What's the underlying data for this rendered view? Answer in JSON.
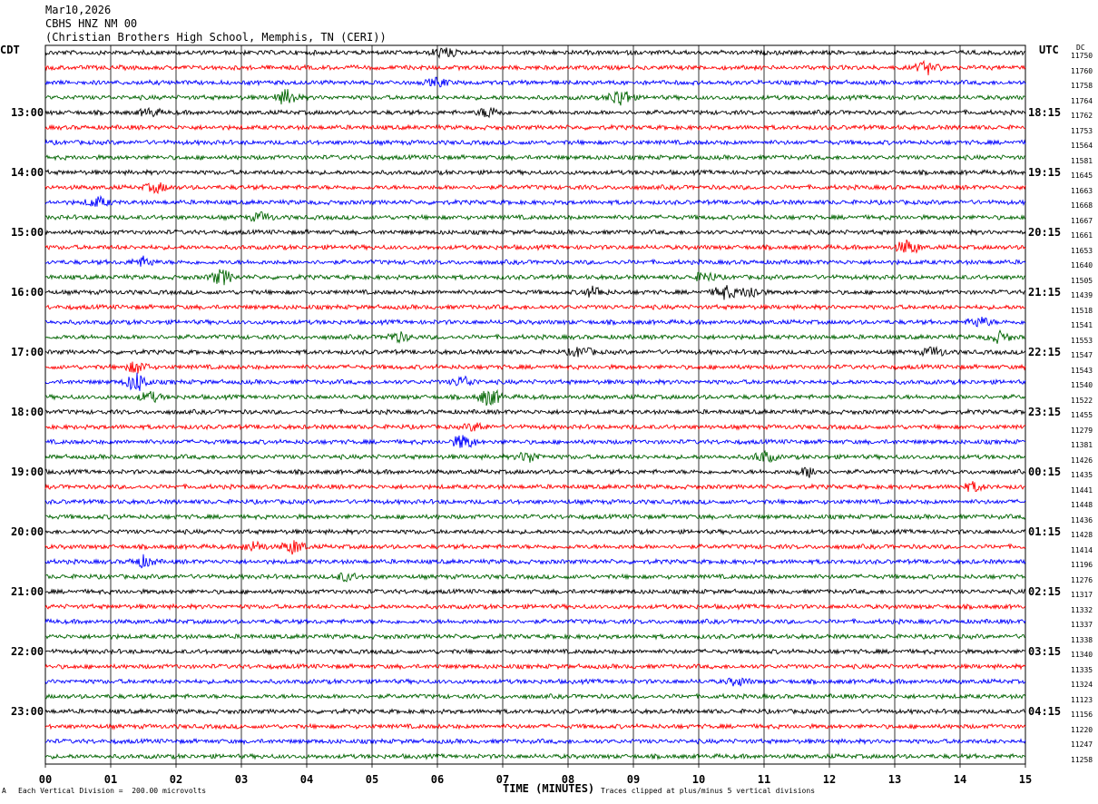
{
  "header": {
    "date": "Mar10,2026",
    "station": "CBHS HNZ NM 00",
    "location": "(Christian Brothers High School, Memphis, TN (CERI))"
  },
  "left_tz": "CDT",
  "right_tz": "UTC",
  "dc_header": "DC",
  "footer": {
    "scale": "Each Vertical Division =  200.00 microvolts",
    "clip": "Traces clipped at plus/minus 5 vertical divisions",
    "mark": "A"
  },
  "colors": {
    "trace_cycle": [
      "#000000",
      "#ff0000",
      "#0000ff",
      "#006400"
    ],
    "grid": "#000000"
  },
  "chart_data": {
    "type": "line",
    "xlabel": "TIME (MINUTES)",
    "x_ticks": [
      "00",
      "01",
      "02",
      "03",
      "04",
      "05",
      "06",
      "07",
      "08",
      "09",
      "10",
      "11",
      "12",
      "13",
      "14",
      "15"
    ],
    "xlim": [
      0,
      15
    ],
    "left_time_labels": [
      "13:00",
      "14:00",
      "15:00",
      "16:00",
      "17:00",
      "18:00",
      "19:00",
      "20:00",
      "21:00",
      "22:00",
      "23:00"
    ],
    "right_time_labels": [
      "18:15",
      "19:15",
      "20:15",
      "21:15",
      "22:15",
      "23:15",
      "00:15",
      "01:15",
      "02:15",
      "03:15",
      "04:15"
    ],
    "dc_offsets": [
      "11750",
      "11760",
      "11758",
      "11764",
      "11762",
      "11753",
      "11564",
      "11581",
      "11645",
      "11663",
      "11668",
      "11667",
      "11661",
      "11653",
      "11640",
      "11505",
      "11439",
      "11518",
      "11541",
      "11553",
      "11547",
      "11543",
      "11540",
      "11522",
      "11455",
      "11279",
      "11381",
      "11426",
      "11435",
      "11441",
      "11448",
      "11436",
      "11428",
      "11414",
      "11196",
      "11276",
      "11317",
      "11332",
      "11337",
      "11338",
      "11340",
      "11335",
      "11324",
      "11123",
      "11156",
      "11220",
      "11247",
      "11258"
    ],
    "events": [
      {
        "trace": 0,
        "minute": 6.1,
        "amp": 1.4
      },
      {
        "trace": 1,
        "minute": 13.5,
        "amp": 1.6
      },
      {
        "trace": 2,
        "minute": 6.0,
        "amp": 1.0
      },
      {
        "trace": 3,
        "minute": 3.7,
        "amp": 2.0
      },
      {
        "trace": 3,
        "minute": 8.8,
        "amp": 2.4
      },
      {
        "trace": 4,
        "minute": 6.8,
        "amp": 1.4
      },
      {
        "trace": 4,
        "minute": 1.6,
        "amp": 1.0
      },
      {
        "trace": 9,
        "minute": 1.7,
        "amp": 1.2
      },
      {
        "trace": 10,
        "minute": 0.8,
        "amp": 1.3
      },
      {
        "trace": 11,
        "minute": 3.3,
        "amp": 1.1
      },
      {
        "trace": 13,
        "minute": 13.2,
        "amp": 1.9
      },
      {
        "trace": 14,
        "minute": 1.5,
        "amp": 1.2
      },
      {
        "trace": 15,
        "minute": 2.7,
        "amp": 2.0
      },
      {
        "trace": 15,
        "minute": 10.1,
        "amp": 1.3
      },
      {
        "trace": 16,
        "minute": 8.4,
        "amp": 1.4
      },
      {
        "trace": 16,
        "minute": 10.4,
        "amp": 1.8
      },
      {
        "trace": 16,
        "minute": 10.8,
        "amp": 1.5
      },
      {
        "trace": 18,
        "minute": 14.3,
        "amp": 1.3
      },
      {
        "trace": 19,
        "minute": 5.4,
        "amp": 1.2
      },
      {
        "trace": 19,
        "minute": 14.6,
        "amp": 1.4
      },
      {
        "trace": 20,
        "minute": 8.2,
        "amp": 1.3
      },
      {
        "trace": 20,
        "minute": 13.6,
        "amp": 1.2
      },
      {
        "trace": 21,
        "minute": 1.4,
        "amp": 1.5
      },
      {
        "trace": 22,
        "minute": 1.4,
        "amp": 2.6
      },
      {
        "trace": 22,
        "minute": 6.4,
        "amp": 1.4
      },
      {
        "trace": 23,
        "minute": 6.8,
        "amp": 2.3
      },
      {
        "trace": 23,
        "minute": 1.6,
        "amp": 1.3
      },
      {
        "trace": 25,
        "minute": 6.6,
        "amp": 1.0
      },
      {
        "trace": 26,
        "minute": 6.4,
        "amp": 1.9
      },
      {
        "trace": 27,
        "minute": 7.4,
        "amp": 1.4
      },
      {
        "trace": 27,
        "minute": 11.0,
        "amp": 1.4
      },
      {
        "trace": 28,
        "minute": 11.7,
        "amp": 1.3
      },
      {
        "trace": 29,
        "minute": 14.2,
        "amp": 1.1
      },
      {
        "trace": 33,
        "minute": 3.8,
        "amp": 1.8
      },
      {
        "trace": 33,
        "minute": 3.2,
        "amp": 1.3
      },
      {
        "trace": 34,
        "minute": 1.5,
        "amp": 1.4
      },
      {
        "trace": 35,
        "minute": 4.6,
        "amp": 1.0
      },
      {
        "trace": 42,
        "minute": 10.6,
        "amp": 1.0
      }
    ]
  }
}
